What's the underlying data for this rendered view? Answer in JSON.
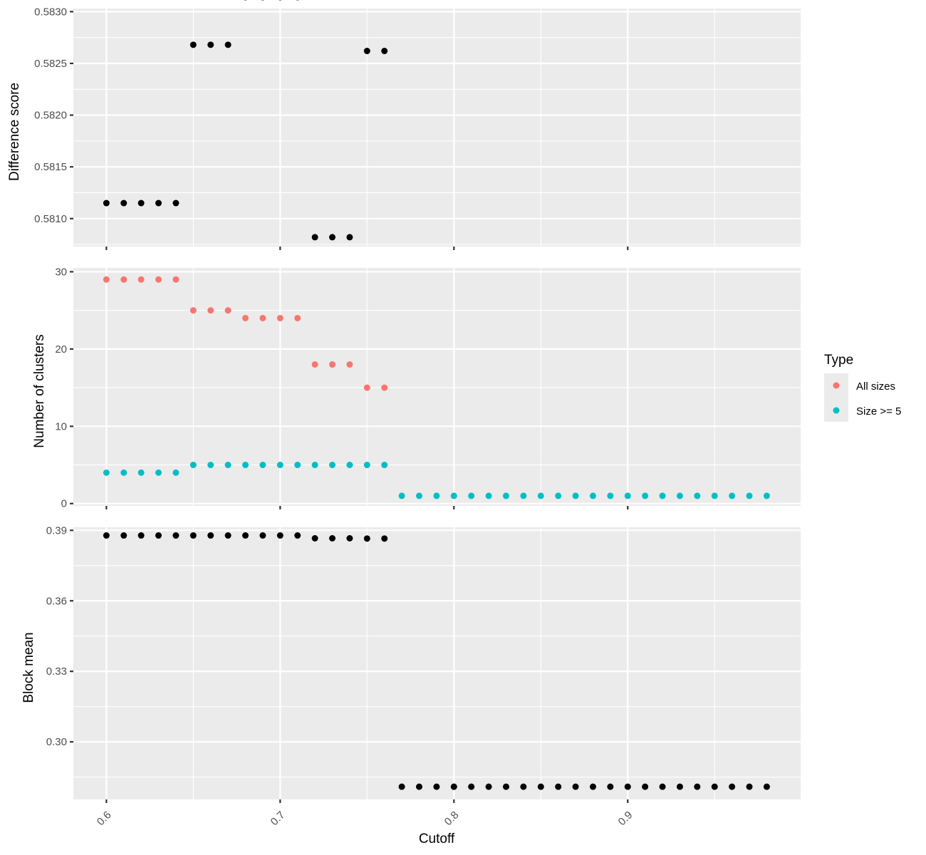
{
  "chart_data": [
    {
      "type": "scatter",
      "ylabel": "Difference score",
      "ylim": [
        0.58073,
        0.58303
      ],
      "yticks": [
        0.581,
        0.5815,
        0.582,
        0.5825,
        0.583
      ],
      "ytick_labels": [
        "0.5810",
        "0.5815",
        "0.5820",
        "0.5825",
        "0.5830"
      ],
      "grid": true,
      "series": [
        {
          "color": "#000000",
          "x": [
            0.6,
            0.61,
            0.62,
            0.63,
            0.64,
            0.65,
            0.66,
            0.67,
            0.68,
            0.69,
            0.7,
            0.71,
            0.72,
            0.73,
            0.74,
            0.75,
            0.76
          ],
          "y": [
            0.58115,
            0.58115,
            0.58115,
            0.58115,
            0.58115,
            0.58268,
            0.58268,
            0.58268,
            0.58314,
            0.58314,
            0.58314,
            0.58314,
            0.58082,
            0.58082,
            0.58082,
            0.58262,
            0.58262
          ]
        }
      ]
    },
    {
      "type": "scatter",
      "ylabel": "Number of clusters",
      "ylim": [
        -0.3,
        30.5
      ],
      "yticks": [
        0,
        10,
        20,
        30
      ],
      "ytick_labels": [
        "0",
        "10",
        "20",
        "30"
      ],
      "grid": true,
      "series": [
        {
          "name": "All sizes",
          "color": "#f8766d",
          "x": [
            0.6,
            0.61,
            0.62,
            0.63,
            0.64,
            0.65,
            0.66,
            0.67,
            0.68,
            0.69,
            0.7,
            0.71,
            0.72,
            0.73,
            0.74,
            0.75,
            0.76
          ],
          "y": [
            29,
            29,
            29,
            29,
            29,
            25,
            25,
            25,
            24,
            24,
            24,
            24,
            18,
            18,
            18,
            15,
            15
          ]
        },
        {
          "name": "Size >= 5",
          "color": "#00bfc4",
          "x": [
            0.6,
            0.61,
            0.62,
            0.63,
            0.64,
            0.65,
            0.66,
            0.67,
            0.68,
            0.69,
            0.7,
            0.71,
            0.72,
            0.73,
            0.74,
            0.75,
            0.76,
            0.77,
            0.78,
            0.79,
            0.8,
            0.81,
            0.82,
            0.83,
            0.84,
            0.85,
            0.86,
            0.87,
            0.88,
            0.89,
            0.9,
            0.91,
            0.92,
            0.93,
            0.94,
            0.95,
            0.96,
            0.97,
            0.98
          ],
          "y": [
            4,
            4,
            4,
            4,
            4,
            5,
            5,
            5,
            5,
            5,
            5,
            5,
            5,
            5,
            5,
            5,
            5,
            1,
            1,
            1,
            1,
            1,
            1,
            1,
            1,
            1,
            1,
            1,
            1,
            1,
            1,
            1,
            1,
            1,
            1,
            1,
            1,
            1,
            1
          ]
        }
      ]
    },
    {
      "type": "scatter",
      "ylabel": "Block mean",
      "ylim": [
        0.2755,
        0.3913
      ],
      "yticks": [
        0.3,
        0.33,
        0.36,
        0.39
      ],
      "ytick_labels": [
        "0.30",
        "0.33",
        "0.36",
        "0.39"
      ],
      "grid": true,
      "series": [
        {
          "color": "#000000",
          "x": [
            0.6,
            0.61,
            0.62,
            0.63,
            0.64,
            0.65,
            0.66,
            0.67,
            0.68,
            0.69,
            0.7,
            0.71,
            0.72,
            0.73,
            0.74,
            0.75,
            0.76,
            0.77,
            0.78,
            0.79,
            0.8,
            0.81,
            0.82,
            0.83,
            0.84,
            0.85,
            0.86,
            0.87,
            0.88,
            0.89,
            0.9,
            0.91,
            0.92,
            0.93,
            0.94,
            0.95,
            0.96,
            0.97,
            0.98
          ],
          "y": [
            0.3878,
            0.3878,
            0.3878,
            0.3878,
            0.3878,
            0.3878,
            0.3878,
            0.3878,
            0.3878,
            0.3878,
            0.3878,
            0.3878,
            0.3866,
            0.3866,
            0.3866,
            0.3865,
            0.3865,
            0.2809,
            0.2809,
            0.2809,
            0.2809,
            0.2809,
            0.2809,
            0.2809,
            0.2809,
            0.2809,
            0.2809,
            0.2809,
            0.2809,
            0.2809,
            0.2809,
            0.2809,
            0.2809,
            0.2809,
            0.2809,
            0.2809,
            0.2809,
            0.2809,
            0.2809
          ]
        }
      ]
    }
  ],
  "x_axis": {
    "label": "Cutoff",
    "xlim": [
      0.581,
      0.9995
    ],
    "ticks": [
      0.6,
      0.7,
      0.8,
      0.9
    ],
    "tick_labels": [
      "0.6",
      "0.7",
      "0.8",
      "0.9"
    ]
  },
  "legend": {
    "title": "Type",
    "placement": "right",
    "entries": [
      {
        "label": "All sizes",
        "color": "#f8766d"
      },
      {
        "label": "Size >= 5",
        "color": "#00bfc4"
      }
    ]
  }
}
